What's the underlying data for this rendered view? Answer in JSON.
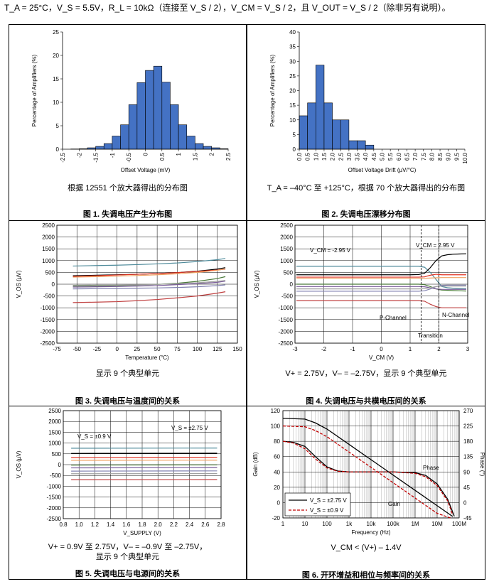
{
  "conditions": "T_A = 25°C，V_S = 5.5V，R_L = 10kΩ（连接至 V_S / 2），V_CM = V_S / 2，且 V_OUT = V_S / 2（除非另有说明）。",
  "colors": {
    "bar": "#4472C4",
    "gain_vs275": "#000000",
    "gain_vs09": "#C00000"
  },
  "figures": [
    {
      "caption": "图 1. 失调电压产生分布图",
      "subtitle": "根据 12551 个放大器得出的分布图"
    },
    {
      "caption": "图 2. 失调电压漂移分布图",
      "subtitle": "T_A = –40°C 至 +125°C，根据 70 个放大器得出的分布图"
    },
    {
      "caption": "图 3. 失调电压与温度间的关系",
      "subtitle": "显示 9 个典型单元"
    },
    {
      "caption": "图 4. 失调电压与共模电压间的关系",
      "subtitle": "V+ = 2.75V，V– = –2.75V，显示 9 个典型单元"
    },
    {
      "caption": "图 5. 失调电压与电源间的关系",
      "subtitle": "V+ = 0.9V 至 2.75V，V– = –0.9V 至 –2.75V，",
      "subtitle2": "显示 9 个典型单元"
    },
    {
      "caption": "图 6. 开环增益和相位与频率间的关系",
      "subtitle": "V_CM < (V+) – 1.4V"
    }
  ],
  "chart_data": [
    {
      "type": "bar",
      "xlabel": "Offset Voltage (mV)",
      "ylabel": "Percentage of Amplifiers (%)",
      "ylim": [
        0,
        25
      ],
      "yticks": [
        0,
        5,
        10,
        15,
        20,
        25
      ],
      "xticks": [
        "-2.5",
        "-2",
        "-1.5",
        "-1",
        "-0.5",
        "0",
        "0.5",
        "1",
        "1.5",
        "2",
        "2.5"
      ],
      "bin_edges": [
        -2.5,
        -2.25,
        -2,
        -1.75,
        -1.5,
        -1.25,
        -1,
        -0.75,
        -0.5,
        -0.25,
        0,
        0.25,
        0.5,
        0.75,
        1,
        1.25,
        1.5,
        1.75,
        2,
        2.25,
        2.5
      ],
      "values": [
        0,
        0.05,
        0.1,
        0.3,
        0.6,
        1.2,
        2.8,
        5.2,
        9.5,
        14.2,
        16.8,
        17.7,
        14.3,
        9.5,
        5.2,
        2.8,
        1.2,
        0.6,
        0.3,
        0.1
      ]
    },
    {
      "type": "bar",
      "xlabel": "Offset Voltage Drift (µV/°C)",
      "ylabel": "Percentage of Amplifiers (%)",
      "ylim": [
        0,
        40
      ],
      "yticks": [
        0,
        5,
        10,
        15,
        20,
        25,
        30,
        35,
        40
      ],
      "xticks": [
        "0.0",
        "0.5",
        "1.0",
        "1.5",
        "2.0",
        "2.5",
        "3.0",
        "3.5",
        "4.0",
        "4.5",
        "5.0",
        "5.5",
        "6.0",
        "6.5",
        "7.0",
        "7.5",
        "8.0",
        "8.5",
        "9.0",
        "9.5",
        "10.0"
      ],
      "bin_edges": [
        0,
        0.5,
        1,
        1.5,
        2,
        2.5,
        3,
        3.5,
        4,
        4.5,
        5,
        5.5,
        6,
        6.5,
        7,
        7.5,
        8,
        8.5,
        9,
        9.5,
        10
      ],
      "values": [
        11.4,
        15.8,
        28.7,
        15.8,
        10,
        10,
        2.9,
        2.9,
        1.4,
        0,
        0,
        0,
        0,
        0,
        0,
        0,
        0,
        0,
        0,
        0
      ]
    },
    {
      "type": "line",
      "xlabel": "Temperature (°C)",
      "ylabel": "V_OS (µV)",
      "xlim": [
        -75,
        150
      ],
      "ylim": [
        -2500,
        2500
      ],
      "xticks": [
        -75,
        -50,
        -25,
        0,
        25,
        50,
        75,
        100,
        125,
        150
      ],
      "yticks": [
        2500,
        2000,
        1500,
        1000,
        500,
        0,
        -500,
        -1000,
        -1500,
        -2000,
        -2500
      ],
      "x": [
        -55,
        -25,
        0,
        25,
        50,
        75,
        100,
        125,
        135
      ],
      "series": [
        {
          "color": "#4e8a9a",
          "values": [
            770,
            790,
            805,
            830,
            860,
            900,
            960,
            1040,
            1090
          ]
        },
        {
          "color": "#000000",
          "values": [
            360,
            380,
            400,
            420,
            450,
            490,
            550,
            640,
            700
          ]
        },
        {
          "color": "#e03020",
          "values": [
            330,
            360,
            390,
            420,
            450,
            490,
            540,
            600,
            640
          ]
        },
        {
          "color": "#f0a060",
          "values": [
            300,
            320,
            340,
            370,
            400,
            440,
            500,
            590,
            650
          ]
        },
        {
          "color": "#4a7a3a",
          "values": [
            -80,
            -70,
            -60,
            -40,
            -10,
            40,
            120,
            240,
            320
          ]
        },
        {
          "color": "#7a5c9a",
          "values": [
            -120,
            -110,
            -100,
            -80,
            -60,
            -20,
            20,
            80,
            130
          ]
        },
        {
          "color": "#8080b0",
          "values": [
            -200,
            -190,
            -180,
            -170,
            -160,
            -140,
            -110,
            -60,
            -30
          ]
        },
        {
          "color": "#c04040",
          "values": [
            -780,
            -760,
            -740,
            -700,
            -650,
            -580,
            -500,
            -380,
            -320
          ]
        },
        {
          "color": "#a0a0a0",
          "values": [
            -50,
            -40,
            -40,
            -30,
            -10,
            20,
            60,
            120,
            160
          ]
        }
      ]
    },
    {
      "type": "line",
      "xlabel": "V_CM (V)",
      "ylabel": "V_OS (µV)",
      "xlim": [
        -3,
        3
      ],
      "ylim": [
        -2500,
        2500
      ],
      "xticks": [
        -3,
        -2,
        -1,
        0,
        1,
        2,
        3
      ],
      "yticks": [
        2500,
        2000,
        1500,
        1000,
        500,
        0,
        -500,
        -1000,
        -1500,
        -2000,
        -2500
      ],
      "annotations": [
        "V_CM = -2.95 V",
        "V_CM = 2.95 V",
        "P-Channel",
        "N-Channel",
        "Transition"
      ],
      "x": [
        -2.95,
        -2,
        -1,
        0,
        1,
        1.3,
        1.5,
        1.7,
        1.9,
        2.1,
        2.3,
        2.5,
        2.7,
        2.95
      ],
      "series": [
        {
          "color": "#4e8a9a",
          "values": [
            760,
            760,
            760,
            760,
            760,
            760,
            720,
            500,
            200,
            -100,
            -150,
            -170,
            -180,
            -190
          ]
        },
        {
          "color": "#000000",
          "values": [
            400,
            400,
            400,
            400,
            400,
            410,
            460,
            700,
            1000,
            1200,
            1250,
            1270,
            1280,
            1290
          ]
        },
        {
          "color": "#e03020",
          "values": [
            300,
            300,
            300,
            300,
            300,
            300,
            310,
            380,
            420,
            400,
            400,
            400,
            400,
            400
          ]
        },
        {
          "color": "#f0a060",
          "values": [
            250,
            250,
            250,
            250,
            250,
            250,
            250,
            260,
            270,
            280,
            280,
            280,
            280,
            280
          ]
        },
        {
          "color": "#4a7a3a",
          "values": [
            0,
            0,
            0,
            0,
            0,
            0,
            -20,
            -100,
            -200,
            -250,
            -260,
            -270,
            -280,
            -290
          ]
        },
        {
          "color": "#7a5c9a",
          "values": [
            -100,
            -100,
            -100,
            -100,
            -100,
            -100,
            -110,
            -150,
            -200,
            -220,
            -220,
            -220,
            -220,
            -220
          ]
        },
        {
          "color": "#8080b0",
          "values": [
            -300,
            -300,
            -300,
            -300,
            -300,
            -300,
            -280,
            -200,
            -100,
            -50,
            -40,
            -40,
            -40,
            -40
          ]
        },
        {
          "color": "#c04040",
          "values": [
            -700,
            -700,
            -700,
            -700,
            -700,
            -700,
            -720,
            -850,
            -950,
            -1000,
            -1000,
            -1000,
            -1000,
            -1000
          ]
        },
        {
          "color": "#a0a0a0",
          "values": [
            -200,
            -200,
            -200,
            -200,
            -200,
            -200,
            -190,
            -150,
            -100,
            -80,
            -80,
            -80,
            -80,
            -80
          ]
        }
      ]
    },
    {
      "type": "line",
      "xlabel": "V_SUPPLY (V)",
      "ylabel": "V_OS (µV)",
      "xlim": [
        0.8,
        2.8
      ],
      "ylim": [
        -2500,
        2500
      ],
      "xticks": [
        0.8,
        1.0,
        1.2,
        1.4,
        1.6,
        1.8,
        2.0,
        2.2,
        2.4,
        2.6,
        2.8
      ],
      "yticks": [
        2500,
        2000,
        1500,
        1000,
        500,
        0,
        -500,
        -1000,
        -1500,
        -2000,
        -2500
      ],
      "annotations": [
        "V_S = ±0.9 V",
        "V_S = ±2.75 V"
      ],
      "x": [
        0.9,
        2.75
      ],
      "series": [
        {
          "color": "#4e8a9a",
          "values": [
            760,
            770
          ]
        },
        {
          "color": "#000000",
          "values": [
            520,
            530
          ]
        },
        {
          "color": "#e03020",
          "values": [
            330,
            340
          ]
        },
        {
          "color": "#f0a060",
          "values": [
            200,
            210
          ]
        },
        {
          "color": "#4a7a3a",
          "values": [
            -20,
            -10
          ]
        },
        {
          "color": "#7a5c9a",
          "values": [
            -150,
            -140
          ]
        },
        {
          "color": "#8080b0",
          "values": [
            -300,
            -290
          ]
        },
        {
          "color": "#a0a0a0",
          "values": [
            -420,
            -410
          ]
        },
        {
          "color": "#c04040",
          "values": [
            -700,
            -690
          ]
        }
      ]
    },
    {
      "type": "line",
      "xlabel": "Frequency (Hz)",
      "ylabel": "Gain (dB)",
      "y2label": "Phase (°)",
      "xscale": "log",
      "xlim": [
        1,
        100000000
      ],
      "ylim": [
        -20,
        120
      ],
      "y2lim": [
        -45,
        270
      ],
      "xticks": [
        "1",
        "10",
        "100",
        "1k",
        "10k",
        "100k",
        "1M",
        "10M",
        "100M"
      ],
      "yticks": [
        120,
        100,
        80,
        60,
        40,
        20,
        0,
        -20
      ],
      "y2ticks": [
        270,
        225,
        180,
        135,
        90,
        45,
        0,
        -45
      ],
      "annotations": [
        "Phase",
        "Gain"
      ],
      "legend": [
        "V_S = ±2.75 V",
        "V_S = ±0.9 V"
      ],
      "series": [
        {
          "name": "V_S = ±2.75 V",
          "kind": "gain",
          "color": "#000000",
          "x": [
            1,
            10,
            30,
            100,
            1000,
            10000,
            100000,
            1000000,
            10000000,
            50000000
          ],
          "values": [
            110,
            109,
            104,
            96,
            76,
            56,
            36,
            16,
            -4,
            -18
          ]
        },
        {
          "name": "V_S = ±0.9 V",
          "kind": "gain",
          "color": "#C00000",
          "x": [
            1,
            10,
            30,
            100,
            1000,
            10000,
            100000,
            1000000,
            10000000,
            40000000
          ],
          "values": [
            100,
            99,
            94,
            86,
            66,
            46,
            26,
            6,
            -14,
            -20
          ]
        },
        {
          "name": "V_S = ±2.75 V",
          "kind": "phase",
          "color": "#000000",
          "x": [
            1,
            3,
            10,
            30,
            100,
            300,
            1000,
            10000,
            100000,
            1000000,
            3000000,
            10000000,
            30000000,
            60000000
          ],
          "values": [
            180,
            177,
            165,
            135,
            105,
            93,
            90,
            90,
            90,
            88,
            80,
            55,
            10,
            -40
          ]
        },
        {
          "name": "V_S = ±0.9 V",
          "kind": "phase",
          "color": "#C00000",
          "x": [
            1,
            3,
            10,
            30,
            100,
            300,
            1000,
            10000,
            100000,
            1000000,
            3000000,
            10000000,
            30000000,
            50000000
          ],
          "values": [
            180,
            175,
            158,
            128,
            102,
            92,
            90,
            90,
            90,
            86,
            76,
            50,
            5,
            -35
          ]
        }
      ]
    }
  ]
}
